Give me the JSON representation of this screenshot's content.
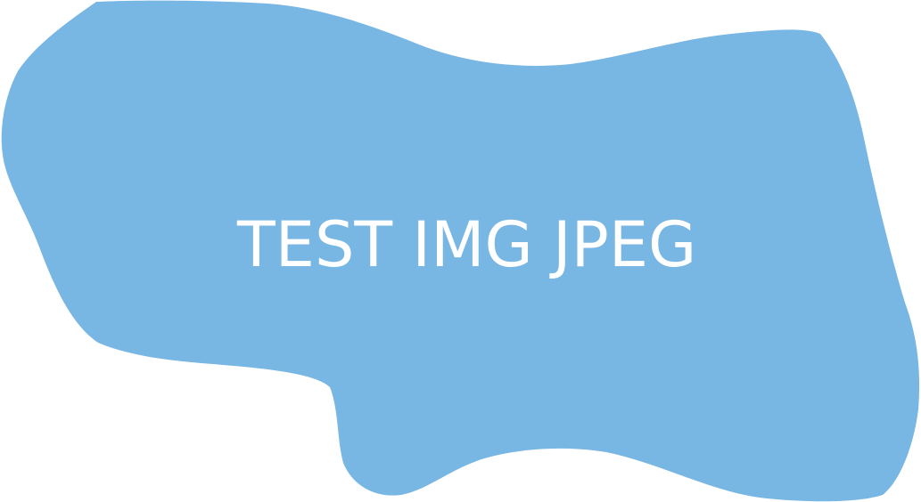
{
  "image": {
    "caption": "TEST IMG JPEG",
    "shape_fill_color": "#78B6E3",
    "caption_color": "#FFFFFF",
    "background_color": "#FFFFFF"
  }
}
